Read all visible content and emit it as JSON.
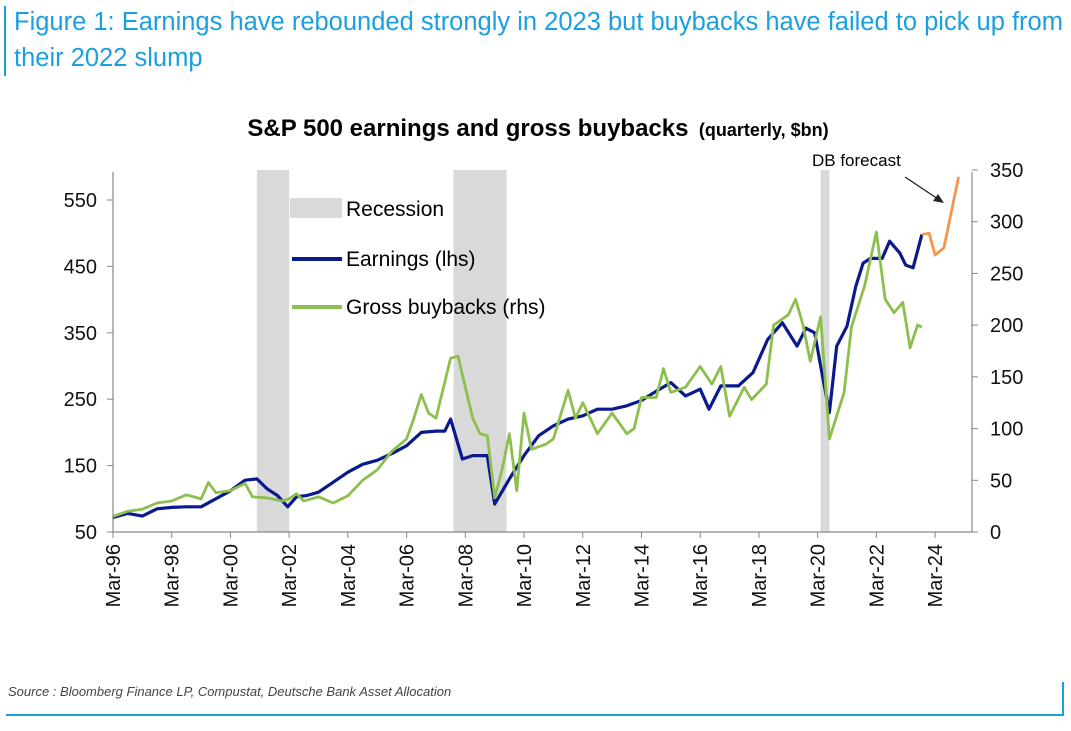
{
  "figure_title": "Figure 1: Earnings have rebounded strongly in 2023 but buybacks have failed to pick up from their 2022 slump",
  "source": "Source : Bloomberg Finance LP, Compustat, Deutsche Bank Asset Allocation",
  "colors": {
    "earnings": "#0a1a8c",
    "buybacks": "#8dbf4e",
    "forecast": "#f5964a",
    "recession": "#d9d9d9",
    "title": "#1a9fe0"
  },
  "chart_data": {
    "type": "line",
    "title_main": "S&P 500 earnings and gross buybacks",
    "title_sub": "(quarterly, $bn)",
    "xlim": [
      1996,
      2025.2
    ],
    "x_ticks": [
      1996,
      1998,
      2000,
      2002,
      2004,
      2006,
      2008,
      2010,
      2012,
      2014,
      2016,
      2018,
      2020,
      2022,
      2024
    ],
    "x_tick_labels": [
      "Mar-96",
      "Mar-98",
      "Mar-00",
      "Mar-02",
      "Mar-04",
      "Mar-06",
      "Mar-08",
      "Mar-10",
      "Mar-12",
      "Mar-14",
      "Mar-16",
      "Mar-18",
      "Mar-20",
      "Mar-22",
      "Mar-24"
    ],
    "y_left": {
      "lim": [
        50,
        600
      ],
      "ticks": [
        50,
        150,
        250,
        350,
        450,
        550
      ],
      "tick_labels": [
        "50",
        "150",
        "250",
        "350",
        "450",
        "550"
      ]
    },
    "y_right": {
      "lim": [
        0,
        350
      ],
      "ticks": [
        0,
        50,
        100,
        150,
        200,
        250,
        300,
        350
      ],
      "tick_labels": [
        "0",
        "50",
        "100",
        "150",
        "200",
        "250",
        "300",
        "350"
      ]
    },
    "legend": {
      "placement": "top-left",
      "recession": "Recession",
      "earnings": "Earnings (lhs)",
      "buybacks": "Gross buybacks (rhs)"
    },
    "annotation": "DB forecast",
    "recessions": [
      [
        2000.9,
        2002.0
      ],
      [
        2007.6,
        2009.4
      ],
      [
        2020.1,
        2020.4
      ]
    ],
    "series": [
      {
        "name": "Earnings (lhs)",
        "axis": "left",
        "x": [
          1996,
          1996.5,
          1997,
          1997.5,
          1998,
          1998.5,
          1999,
          1999.5,
          2000,
          2000.5,
          2000.9,
          2001.25,
          2001.6,
          2001.95,
          2002.25,
          2002.6,
          2003,
          2003.5,
          2004,
          2004.5,
          2005,
          2005.5,
          2006,
          2006.5,
          2007,
          2007.3,
          2007.5,
          2007.9,
          2008.25,
          2008.75,
          2009.0,
          2009.5,
          2010,
          2010.5,
          2011,
          2011.5,
          2012,
          2012.5,
          2013,
          2013.5,
          2014,
          2014.5,
          2015,
          2015.5,
          2016,
          2016.3,
          2016.7,
          2017.3,
          2017.8,
          2018.3,
          2018.8,
          2019.3,
          2019.6,
          2019.9,
          2020.1,
          2020.4,
          2020.65,
          2021.0,
          2021.3,
          2021.55,
          2021.8,
          2022.2,
          2022.45,
          2022.8,
          2023.0,
          2023.25,
          2023.55
        ],
        "values": [
          72,
          78,
          74,
          85,
          87,
          88,
          88,
          100,
          112,
          128,
          130,
          115,
          105,
          88,
          103,
          105,
          110,
          125,
          140,
          152,
          158,
          168,
          180,
          200,
          202,
          202,
          220,
          160,
          165,
          165,
          92,
          130,
          165,
          195,
          210,
          220,
          225,
          235,
          235,
          240,
          248,
          262,
          275,
          255,
          265,
          235,
          270,
          270,
          290,
          340,
          365,
          330,
          357,
          350,
          300,
          230,
          330,
          360,
          420,
          455,
          462,
          462,
          488,
          470,
          452,
          448,
          498
        ]
      },
      {
        "name": "Gross buybacks (rhs)",
        "axis": "right",
        "x": [
          1996,
          1996.5,
          1997,
          1997.5,
          1998,
          1998.5,
          1999,
          1999.25,
          1999.5,
          2000,
          2000.5,
          2000.75,
          2001.25,
          2001.75,
          2002,
          2002.25,
          2002.5,
          2003,
          2003.5,
          2004,
          2004.5,
          2005,
          2005.5,
          2006,
          2006.25,
          2006.5,
          2006.75,
          2007,
          2007.5,
          2007.75,
          2008.25,
          2008.5,
          2008.75,
          2009,
          2009.25,
          2009.5,
          2009.75,
          2010,
          2010.25,
          2010.75,
          2011,
          2011.5,
          2011.75,
          2012,
          2012.5,
          2013,
          2013.5,
          2013.75,
          2014,
          2014.5,
          2014.75,
          2015,
          2015.5,
          2016,
          2016.4,
          2016.7,
          2017,
          2017.5,
          2017.75,
          2018.25,
          2018.5,
          2019,
          2019.25,
          2019.5,
          2019.75,
          2020.1,
          2020.4,
          2020.9,
          2021.15,
          2021.6,
          2022.0,
          2022.3,
          2022.6,
          2022.9,
          2023.15,
          2023.4,
          2023.55
        ],
        "values": [
          15,
          20,
          22,
          28,
          30,
          36,
          32,
          48,
          38,
          40,
          47,
          34,
          33,
          30,
          32,
          37,
          30,
          34,
          28,
          35,
          50,
          60,
          78,
          90,
          110,
          133,
          115,
          110,
          168,
          170,
          110,
          95,
          93,
          33,
          60,
          95,
          40,
          115,
          80,
          85,
          90,
          137,
          110,
          125,
          95,
          115,
          95,
          100,
          130,
          130,
          158,
          135,
          140,
          160,
          143,
          160,
          112,
          140,
          128,
          143,
          200,
          210,
          225,
          200,
          165,
          208,
          90,
          135,
          198,
          238,
          290,
          225,
          212,
          222,
          178,
          200,
          198
        ]
      },
      {
        "name": "DB forecast",
        "axis": "left",
        "x": [
          2023.55,
          2023.8,
          2024.0,
          2024.3,
          2024.8
        ],
        "values": [
          498,
          500,
          467,
          478,
          585
        ]
      }
    ]
  }
}
